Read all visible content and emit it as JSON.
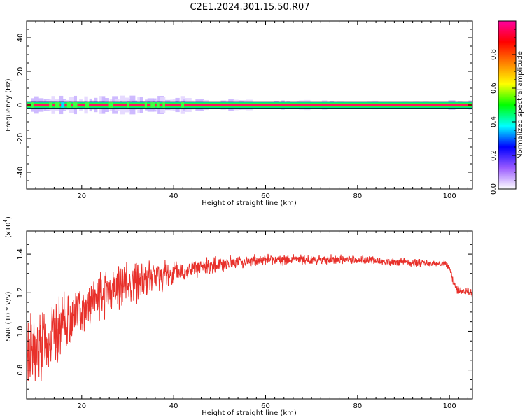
{
  "page": {
    "title": "C2E1.2024.301.15.50.R07"
  },
  "chart_data": [
    {
      "type": "heatmap",
      "xlabel": "Height of straight line (km)",
      "ylabel": "Frequency (Hz)",
      "xlim": [
        8,
        105
      ],
      "ylim": [
        -50,
        50
      ],
      "x_ticks": [
        20,
        40,
        60,
        80,
        100
      ],
      "y_ticks": [
        -40,
        -20,
        0,
        20,
        40
      ],
      "grid": false,
      "description_values": {
        "band_center_hz": 0,
        "band_halfwidth_hz": 2
      },
      "colorbar": {
        "label": "Normalized spectral amplitude",
        "range": [
          0.0,
          1.0
        ],
        "ticks": [
          "0.0",
          "0.2",
          "0.4",
          "0.6",
          "0.8"
        ],
        "colors": [
          "#ffffff",
          "#9b5cff",
          "#0000ff",
          "#00ffff",
          "#00ff00",
          "#ffff00",
          "#ff8000",
          "#ff0000",
          "#ff00a0"
        ]
      }
    },
    {
      "type": "line",
      "xlabel": "Height of straight line (km)",
      "ylabel": "SNR (10 * v/v)",
      "multiplier_label": "(x10",
      "multiplier_exp": "4",
      "xlim": [
        8,
        105
      ],
      "ylim": [
        0.65,
        1.52
      ],
      "x_ticks": [
        20,
        40,
        60,
        80,
        100
      ],
      "y_ticks": [
        0.8,
        1.0,
        1.2,
        1.4
      ],
      "grid": false,
      "line_color": "#e8302a",
      "series": [
        {
          "x": [
            8,
            10,
            12,
            14,
            16,
            18,
            20,
            22,
            24,
            26,
            28,
            30,
            32,
            34,
            36,
            38,
            40,
            42,
            44,
            46,
            48,
            50,
            52,
            54,
            56,
            58,
            60,
            62,
            64,
            66,
            68,
            70,
            72,
            74,
            76,
            78,
            80,
            82,
            84,
            86,
            88,
            90,
            92,
            94,
            96,
            98,
            99,
            100,
            101,
            102,
            103,
            104,
            105
          ],
          "values": [
            0.92,
            0.88,
            0.95,
            0.98,
            1.03,
            1.08,
            1.12,
            1.15,
            1.18,
            1.2,
            1.23,
            1.25,
            1.26,
            1.27,
            1.28,
            1.29,
            1.3,
            1.31,
            1.32,
            1.33,
            1.34,
            1.35,
            1.355,
            1.36,
            1.36,
            1.365,
            1.37,
            1.37,
            1.37,
            1.37,
            1.37,
            1.37,
            1.37,
            1.37,
            1.37,
            1.37,
            1.37,
            1.37,
            1.365,
            1.36,
            1.36,
            1.36,
            1.355,
            1.355,
            1.35,
            1.35,
            1.35,
            1.33,
            1.24,
            1.21,
            1.2,
            1.2,
            1.2
          ],
          "noise_amplitude": [
            0.25,
            0.25,
            0.22,
            0.2,
            0.18,
            0.16,
            0.15,
            0.14,
            0.14,
            0.14,
            0.14,
            0.14,
            0.13,
            0.12,
            0.11,
            0.1,
            0.08,
            0.07,
            0.06,
            0.05,
            0.05,
            0.05,
            0.045,
            0.04,
            0.04,
            0.04,
            0.035,
            0.035,
            0.035,
            0.035,
            0.035,
            0.03,
            0.03,
            0.03,
            0.03,
            0.03,
            0.03,
            0.025,
            0.025,
            0.025,
            0.025,
            0.025,
            0.025,
            0.025,
            0.02,
            0.02,
            0.02,
            0.02,
            0.03,
            0.03,
            0.03,
            0.03,
            0.03
          ]
        }
      ]
    }
  ]
}
